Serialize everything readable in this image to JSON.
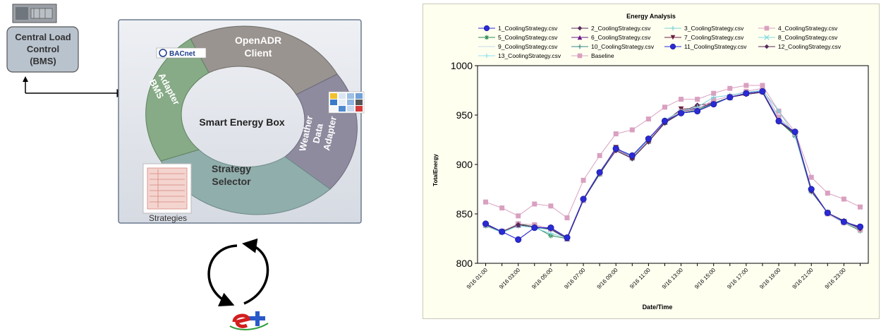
{
  "diagram": {
    "central_load_control": "Central Load Control (BMS)",
    "central_load_lines": [
      "Central Load",
      "Control",
      "(BMS)"
    ],
    "openadr_lines": [
      "OpenADR",
      "Client"
    ],
    "bms_adapter_lines": [
      "BMS",
      "Adapter"
    ],
    "weather_lines": [
      "Weather",
      "Data",
      "Adapter"
    ],
    "strategy_lines": [
      "Strategy",
      "Selector"
    ],
    "smart_energy_box": "Smart Energy Box",
    "bacnet_logo": "BACnet",
    "strategies": "Strategies",
    "energyplus_logo": "e+"
  },
  "colors": {
    "openadr": "#9a9490",
    "bms": "#86ab86",
    "weather": "#8e8b9f",
    "strategy": "#90aeac",
    "panel": "#e3e6ec",
    "load_box": "#b9c3ce",
    "chart_bg": "#fffff0",
    "baseline": "#d9a0c0",
    "marker_blue": "#2a2ad6"
  },
  "chart_data": {
    "type": "line",
    "title": "Energy Analysis",
    "xlabel": "Date/Time",
    "ylabel": "TotalEnergy",
    "ylim": [
      800,
      1000
    ],
    "yticks": [
      800,
      850,
      900,
      950,
      1000
    ],
    "x_tick_labels": [
      "9/16 01:00",
      "9/16 03:00",
      "9/16 05:00",
      "9/16 07:00",
      "9/16 09:00",
      "9/16 11:00",
      "9/16 13:00",
      "9/16 15:00",
      "9/16 17:00",
      "9/16 19:00",
      "9/16 21:00",
      "9/16 23:00"
    ],
    "x": [
      "9/16 01:00",
      "9/16 02:00",
      "9/16 03:00",
      "9/16 04:00",
      "9/16 05:00",
      "9/16 06:00",
      "9/16 07:00",
      "9/16 08:00",
      "9/16 09:00",
      "9/16 10:00",
      "9/16 11:00",
      "9/16 12:00",
      "9/16 13:00",
      "9/16 14:00",
      "9/16 15:00",
      "9/16 16:00",
      "9/16 17:00",
      "9/16 18:00",
      "9/16 19:00",
      "9/16 20:00",
      "9/16 21:00",
      "9/16 22:00",
      "9/16 23:00",
      "9/16 24:00"
    ],
    "legend": "top",
    "grid": false,
    "series": [
      {
        "name": "1_CoolingStrategy.csv",
        "color": "#2a2ad6",
        "marker": "circle",
        "values": [
          840,
          832,
          824,
          836,
          836,
          826,
          865,
          892,
          916,
          909,
          926,
          944,
          952,
          954,
          961,
          968,
          972,
          974,
          944,
          933,
          875,
          851,
          842,
          837
        ]
      },
      {
        "name": "2_CoolingStrategy.csv",
        "color": "#5a2a5a",
        "marker": "diamond",
        "values": [
          839,
          832,
          839,
          837,
          835,
          825,
          864,
          891,
          914,
          906,
          923,
          942,
          952,
          954,
          961,
          968,
          971,
          973,
          943,
          932,
          873,
          851,
          843,
          835
        ]
      },
      {
        "name": "3_CoolingStrategy.csv",
        "color": "#7ad0d6",
        "marker": "plus",
        "values": [
          838,
          831,
          838,
          836,
          830,
          826,
          864,
          891,
          916,
          908,
          925,
          945,
          954,
          958,
          968,
          970,
          973,
          975,
          954,
          929,
          872,
          851,
          841,
          835
        ]
      },
      {
        "name": "4_CoolingStrategy.csv",
        "color": "#d9a0c0",
        "marker": "square",
        "values": [
          839,
          832,
          840,
          839,
          835,
          826,
          864,
          891,
          915,
          907,
          924,
          944,
          953,
          956,
          965,
          969,
          974,
          977,
          948,
          931,
          874,
          850,
          841,
          834
        ]
      },
      {
        "name": "5_CoolingStrategy.csv",
        "color": "#2e8b57",
        "marker": "asterisk",
        "values": [
          838,
          832,
          840,
          837,
          828,
          825,
          864,
          890,
          915,
          906,
          923,
          942,
          952,
          955,
          962,
          968,
          972,
          974,
          944,
          929,
          873,
          851,
          841,
          833
        ]
      },
      {
        "name": "6_CoolingStrategy.csv",
        "color": "#6a1a8a",
        "marker": "triangle",
        "values": [
          839,
          832,
          839,
          837,
          835,
          825,
          864,
          891,
          916,
          907,
          924,
          943,
          953,
          957,
          962,
          968,
          972,
          974,
          944,
          931,
          874,
          851,
          842,
          836
        ]
      },
      {
        "name": "7_CoolingStrategy.csv",
        "color": "#6b2040",
        "marker": "triangle-down",
        "values": [
          839,
          832,
          839,
          837,
          835,
          825,
          864,
          891,
          917,
          907,
          924,
          943,
          956,
          957,
          962,
          968,
          972,
          974,
          944,
          931,
          874,
          851,
          842,
          836
        ]
      },
      {
        "name": "8_CoolingStrategy.csv",
        "color": "#80d8e0",
        "marker": "x",
        "values": [
          839,
          832,
          839,
          837,
          835,
          825,
          864,
          891,
          916,
          907,
          924,
          943,
          953,
          956,
          962,
          968,
          972,
          974,
          946,
          931,
          874,
          851,
          842,
          836
        ]
      },
      {
        "name": "9_CoolingStrategy.csv",
        "color": "#c0d8e8",
        "marker": "none",
        "values": [
          839,
          832,
          839,
          837,
          835,
          825,
          864,
          891,
          916,
          907,
          924,
          943,
          953,
          956,
          962,
          968,
          972,
          974,
          944,
          931,
          874,
          851,
          842,
          836
        ]
      },
      {
        "name": "10_CoolingStrategy.csv",
        "color": "#3a8a8a",
        "marker": "plus",
        "values": [
          838,
          832,
          839,
          837,
          834,
          825,
          864,
          891,
          915,
          906,
          923,
          942,
          952,
          955,
          962,
          968,
          972,
          974,
          944,
          930,
          873,
          851,
          842,
          835
        ]
      },
      {
        "name": "11_CoolingStrategy.csv",
        "color": "#2a2ad6",
        "marker": "circle",
        "values": [
          840,
          832,
          824,
          836,
          836,
          826,
          865,
          892,
          916,
          909,
          926,
          944,
          952,
          954,
          961,
          968,
          972,
          974,
          944,
          933,
          875,
          851,
          842,
          837
        ]
      },
      {
        "name": "12_CoolingStrategy.csv",
        "color": "#5a2a5a",
        "marker": "diamond",
        "values": [
          839,
          832,
          839,
          837,
          835,
          825,
          864,
          891,
          915,
          906,
          923,
          942,
          953,
          960,
          962,
          968,
          971,
          973,
          943,
          932,
          873,
          851,
          843,
          835
        ]
      },
      {
        "name": "13_CoolingStrategy.csv",
        "color": "#90e0f0",
        "marker": "plus",
        "values": [
          838,
          831,
          838,
          836,
          834,
          825,
          864,
          891,
          916,
          907,
          924,
          943,
          953,
          956,
          962,
          968,
          972,
          974,
          944,
          931,
          873,
          851,
          842,
          835
        ]
      },
      {
        "name": "Baseline",
        "color": "#d9a0c0",
        "marker": "square",
        "values": [
          862,
          856,
          848,
          860,
          858,
          846,
          884,
          909,
          931,
          935,
          946,
          958,
          966,
          966,
          972,
          977,
          980,
          980,
          954,
          933,
          887,
          871,
          865,
          857
        ]
      }
    ]
  }
}
